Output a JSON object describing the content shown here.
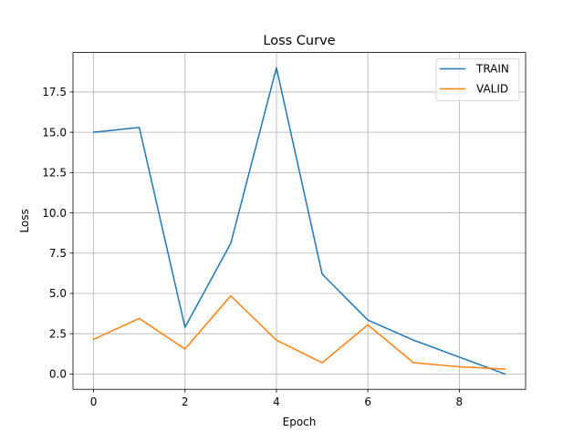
{
  "chart_data": {
    "type": "line",
    "title": "Loss Curve",
    "xlabel": "Epoch",
    "ylabel": "Loss",
    "x": [
      0,
      1,
      2,
      3,
      4,
      5,
      6,
      7,
      8,
      9
    ],
    "xlim": [
      -0.45,
      9.45
    ],
    "ylim": [
      -0.95,
      19.95
    ],
    "xticks": [
      0,
      2,
      4,
      6,
      8
    ],
    "xtick_labels": [
      "0",
      "2",
      "4",
      "6",
      "8"
    ],
    "yticks": [
      0,
      2.5,
      5,
      7.5,
      10,
      12.5,
      15,
      17.5
    ],
    "ytick_labels": [
      "0.0",
      "2.5",
      "5.0",
      "7.5",
      "10.0",
      "12.5",
      "15.0",
      "17.5"
    ],
    "grid": true,
    "legend_position": "top-right",
    "series": [
      {
        "name": "TRAIN",
        "color": "#1f77b4",
        "values": [
          15.0,
          15.3,
          2.9,
          8.1,
          19.0,
          6.2,
          3.35,
          2.1,
          1.05,
          0.0
        ]
      },
      {
        "name": "VALID",
        "color": "#ff7f0e",
        "values": [
          2.15,
          3.45,
          1.55,
          4.85,
          2.1,
          0.7,
          3.05,
          0.7,
          0.45,
          0.3
        ]
      }
    ]
  }
}
